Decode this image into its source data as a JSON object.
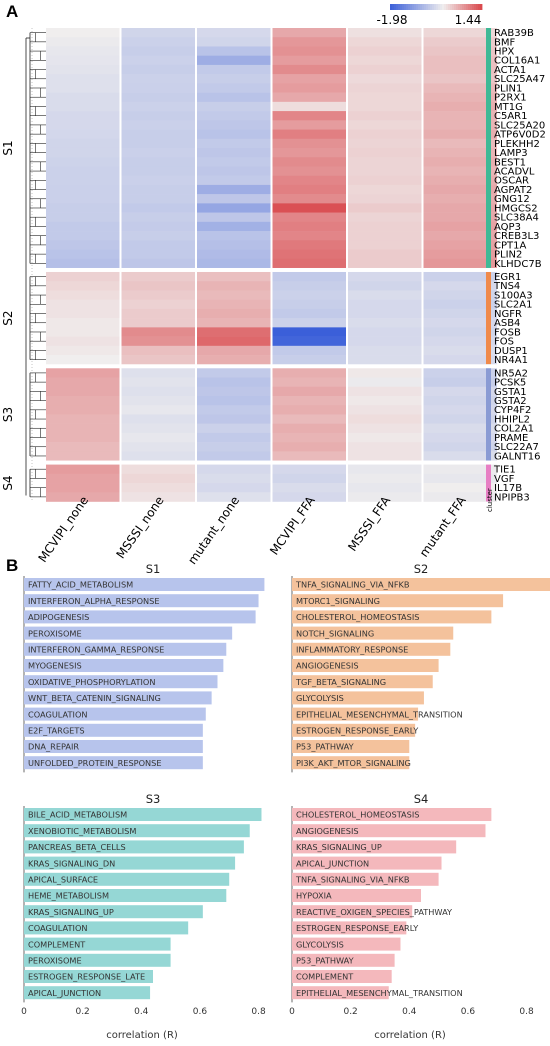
{
  "figure": {
    "panel_a_label": "A",
    "panel_b_label": "B"
  },
  "chart_data": [
    {
      "type": "heatmap",
      "colorscale": {
        "min": -1.98,
        "max": 1.44,
        "min_label": "-1.98",
        "max_label": "1.44",
        "low_color": "#3b5fd9",
        "mid_color": "#f0eeee",
        "high_color": "#d9464a"
      },
      "columns": [
        "MCVIPI_none",
        "MSSSI_none",
        "mutant_none",
        "MCVIPI_FFA",
        "MSSSI_FFA",
        "mutant_FFA"
      ],
      "cluster_axis_label": "cluster",
      "clusters": [
        {
          "name": "S1",
          "color": "#3fb996",
          "genes": [
            "RAB39B",
            "BMF",
            "HPX",
            "COL16A1",
            "ACTA1",
            "SLC25A47",
            "PLIN1",
            "P2RX1",
            "MT1G",
            "C5AR1",
            "SLC25A20",
            "ATP6V0D2",
            "PLEKHH2",
            "LAMP3",
            "BEST1",
            "ACADVL",
            "OSCAR",
            "AGPAT2",
            "GNG12",
            "HMGCS2",
            "SLC38A4",
            "AQP3",
            "CREB3L3",
            "CPT1A",
            "PLIN2",
            "KLHDC7B"
          ],
          "values": [
            [
              0.0,
              -0.35,
              -0.3,
              0.6,
              0.12,
              0.2
            ],
            [
              -0.05,
              -0.4,
              -0.35,
              0.75,
              0.2,
              0.3
            ],
            [
              -0.1,
              -0.45,
              -0.6,
              0.8,
              0.25,
              0.35
            ],
            [
              -0.12,
              -0.4,
              -0.9,
              0.7,
              0.2,
              0.4
            ],
            [
              -0.15,
              -0.45,
              -0.5,
              0.85,
              0.25,
              0.4
            ],
            [
              -0.2,
              -0.4,
              -0.45,
              0.65,
              0.18,
              0.35
            ],
            [
              -0.2,
              -0.42,
              -0.5,
              0.7,
              0.22,
              0.45
            ],
            [
              -0.25,
              -0.45,
              -0.6,
              0.6,
              0.2,
              0.5
            ],
            [
              -0.25,
              -0.4,
              -0.45,
              0.15,
              0.2,
              0.55
            ],
            [
              -0.3,
              -0.45,
              -0.5,
              0.9,
              0.25,
              0.5
            ],
            [
              -0.3,
              -0.42,
              -0.55,
              0.7,
              0.2,
              0.5
            ],
            [
              -0.32,
              -0.45,
              -0.6,
              0.95,
              0.25,
              0.55
            ],
            [
              -0.35,
              -0.45,
              -0.5,
              0.8,
              0.22,
              0.45
            ],
            [
              -0.35,
              -0.42,
              -0.55,
              0.75,
              0.25,
              0.5
            ],
            [
              -0.38,
              -0.45,
              -0.5,
              0.85,
              0.22,
              0.55
            ],
            [
              -0.4,
              -0.45,
              -0.55,
              0.8,
              0.22,
              0.5
            ],
            [
              -0.4,
              -0.42,
              -0.5,
              0.9,
              0.25,
              0.55
            ],
            [
              -0.42,
              -0.45,
              -0.9,
              0.95,
              0.2,
              0.6
            ],
            [
              -0.42,
              -0.45,
              -0.55,
              0.85,
              0.22,
              0.55
            ],
            [
              -0.45,
              -0.5,
              -1.0,
              1.35,
              0.3,
              0.6
            ],
            [
              -0.45,
              -0.45,
              -0.55,
              0.9,
              0.22,
              0.6
            ],
            [
              -0.5,
              -0.48,
              -0.85,
              0.95,
              0.25,
              0.65
            ],
            [
              -0.5,
              -0.45,
              -0.6,
              0.9,
              0.25,
              0.6
            ],
            [
              -0.55,
              -0.5,
              -0.65,
              1.0,
              0.25,
              0.65
            ],
            [
              -0.6,
              -0.5,
              -0.7,
              1.05,
              0.3,
              0.7
            ],
            [
              -0.65,
              -0.55,
              -0.75,
              1.1,
              0.3,
              0.75
            ]
          ]
        },
        {
          "name": "S2",
          "color": "#f08a4b",
          "genes": [
            "EGR1",
            "TNS4",
            "S100A3",
            "SLC2A1",
            "NGFR",
            "ASB4",
            "FOSB",
            "FOS",
            "DUSP1",
            "NR4A1"
          ],
          "values": [
            [
              0.25,
              0.3,
              0.4,
              -0.5,
              -0.3,
              -0.4
            ],
            [
              0.2,
              0.35,
              0.5,
              -0.45,
              -0.35,
              -0.3
            ],
            [
              0.15,
              0.3,
              0.45,
              -0.4,
              -0.25,
              -0.35
            ],
            [
              0.1,
              0.25,
              0.5,
              -0.45,
              -0.3,
              -0.4
            ],
            [
              0.1,
              0.3,
              0.55,
              -0.5,
              -0.3,
              -0.35
            ],
            [
              0.05,
              0.3,
              0.5,
              -0.4,
              -0.25,
              -0.3
            ],
            [
              0.05,
              0.85,
              1.1,
              -1.98,
              -0.3,
              -0.35
            ],
            [
              0.1,
              0.8,
              1.15,
              -1.9,
              -0.3,
              -0.3
            ],
            [
              0.05,
              0.4,
              0.6,
              -0.5,
              -0.25,
              -0.25
            ],
            [
              0.0,
              0.35,
              0.55,
              -0.45,
              -0.25,
              -0.3
            ]
          ]
        },
        {
          "name": "S3",
          "color": "#8a9bd4",
          "genes": [
            "NR5A2",
            "PCSK5",
            "GSTA1",
            "GSTA2",
            "CYP4F2",
            "HHIPL2",
            "COL2A1",
            "PRAME",
            "SLC22A7",
            "GALNT16"
          ],
          "values": [
            [
              0.65,
              -0.2,
              -0.5,
              0.55,
              0.05,
              -0.4
            ],
            [
              0.6,
              -0.15,
              -0.6,
              0.5,
              -0.05,
              -0.45
            ],
            [
              0.6,
              -0.2,
              -0.55,
              0.6,
              0.1,
              -0.3
            ],
            [
              0.55,
              -0.15,
              -0.6,
              0.5,
              0.05,
              -0.35
            ],
            [
              0.55,
              -0.1,
              -0.5,
              0.55,
              0.1,
              -0.3
            ],
            [
              0.5,
              -0.2,
              -0.55,
              0.45,
              0.15,
              -0.35
            ],
            [
              0.5,
              -0.15,
              -0.4,
              0.55,
              0.1,
              -0.25
            ],
            [
              0.5,
              -0.1,
              -0.5,
              0.5,
              0.05,
              -0.3
            ],
            [
              0.45,
              -0.15,
              -0.45,
              0.55,
              0.1,
              -0.35
            ],
            [
              0.45,
              -0.2,
              -0.5,
              0.45,
              0.1,
              -0.25
            ]
          ]
        },
        {
          "name": "S4",
          "color": "#e77fc4",
          "genes": [
            "TIE1",
            "VGF",
            "IL17B",
            "NPIPB3"
          ],
          "values": [
            [
              0.7,
              0.15,
              -0.3,
              -0.3,
              -0.1,
              -0.05
            ],
            [
              0.65,
              0.2,
              -0.25,
              -0.35,
              -0.05,
              -0.1
            ],
            [
              0.65,
              0.15,
              -0.3,
              -0.25,
              -0.1,
              0.0
            ],
            [
              0.6,
              0.1,
              -0.2,
              -0.3,
              -0.05,
              -0.05
            ]
          ]
        }
      ]
    },
    {
      "type": "bar",
      "title": "S1",
      "color": "#b7c4ec",
      "xlabel": "",
      "categories": [
        "FATTY_ACID_METABOLISM",
        "INTERFERON_ALPHA_RESPONSE",
        "ADIPOGENESIS",
        "PEROXISOME",
        "INTERFERON_GAMMA_RESPONSE",
        "MYOGENESIS",
        "OXIDATIVE_PHOSPHORYLATION",
        "WNT_BETA_CATENIN_SIGNALING",
        "COAGULATION",
        "E2F_TARGETS",
        "DNA_REPAIR",
        "UNFOLDED_PROTEIN_RESPONSE"
      ],
      "values": [
        0.82,
        0.8,
        0.79,
        0.71,
        0.69,
        0.68,
        0.66,
        0.64,
        0.62,
        0.61,
        0.61,
        0.61
      ]
    },
    {
      "type": "bar",
      "title": "S2",
      "color": "#f4c29c",
      "xlabel": "",
      "categories": [
        "TNFA_SIGNALING_VIA_NFKB",
        "MTORC1_SIGNALING",
        "CHOLESTEROL_HOMEOSTASIS",
        "NOTCH_SIGNALING",
        "INFLAMMATORY_RESPONSE",
        "ANGIOGENESIS",
        "TGF_BETA_SIGNALING",
        "GLYCOLYSIS",
        "EPITHELIAL_MESENCHYMAL_TRANSITION",
        "ESTROGEN_RESPONSE_EARLY",
        "P53_PATHWAY",
        "PI3K_AKT_MTOR_SIGNALING"
      ],
      "values": [
        0.89,
        0.72,
        0.68,
        0.55,
        0.54,
        0.5,
        0.48,
        0.45,
        0.43,
        0.42,
        0.4,
        0.4
      ]
    },
    {
      "type": "bar",
      "title": "S3",
      "color": "#95d7d5",
      "xlabel": "correlation (R)",
      "categories": [
        "BILE_ACID_METABOLISM",
        "XENOBIOTIC_METABOLISM",
        "PANCREAS_BETA_CELLS",
        "KRAS_SIGNALING_DN",
        "APICAL_SURFACE",
        "HEME_METABOLISM",
        "KRAS_SIGNALING_UP",
        "COAGULATION",
        "COMPLEMENT",
        "PEROXISOME",
        "ESTROGEN_RESPONSE_LATE",
        "APICAL_JUNCTION"
      ],
      "values": [
        0.81,
        0.77,
        0.75,
        0.72,
        0.7,
        0.69,
        0.61,
        0.56,
        0.5,
        0.5,
        0.44,
        0.43
      ],
      "xticks": [
        "0",
        "0.2",
        "0.4",
        "0.6",
        "0.8"
      ],
      "xlim": [
        0,
        0.88
      ]
    },
    {
      "type": "bar",
      "title": "S4",
      "color": "#f4b8bc",
      "xlabel": "correlation (R)",
      "categories": [
        "CHOLESTEROL_HOMEOSTASIS",
        "ANGIOGENESIS",
        "KRAS_SIGNALING_UP",
        "APICAL_JUNCTION",
        "TNFA_SIGNALING_VIA_NFKB",
        "HYPOXIA",
        "REACTIVE_OXIGEN_SPECIES_PATHWAY",
        "ESTROGEN_RESPONSE_EARLY",
        "GLYCOLYSIS",
        "P53_PATHWAY",
        "COMPLEMENT",
        "EPITHELIAL_MESENCHYMAL_TRANSITION"
      ],
      "values": [
        0.68,
        0.66,
        0.56,
        0.51,
        0.5,
        0.44,
        0.41,
        0.39,
        0.37,
        0.35,
        0.34,
        0.33
      ],
      "xticks": [
        "0",
        "0.2",
        "0.4",
        "0.6",
        "0.8"
      ],
      "xlim": [
        0,
        0.88
      ]
    }
  ]
}
